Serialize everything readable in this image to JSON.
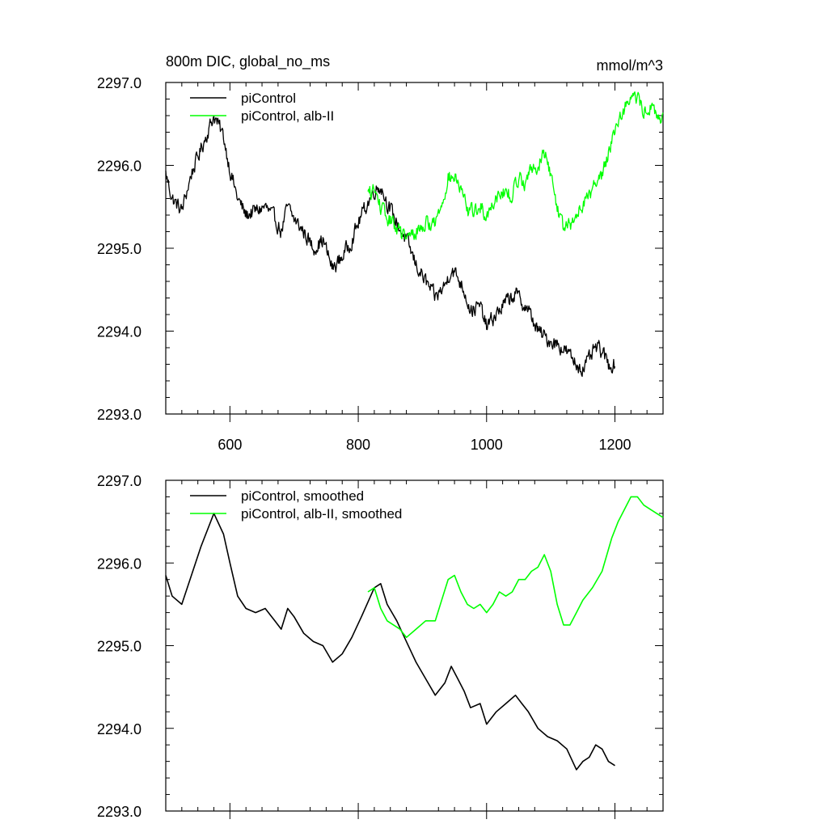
{
  "chart_data": [
    {
      "type": "line",
      "title": "800m DIC, global_no_ms",
      "units": "mmol/m^3",
      "xlim": [
        500,
        1275
      ],
      "ylim": [
        2293.0,
        2297.0
      ],
      "x_ticks": [
        600,
        800,
        1000,
        1200
      ],
      "x_tick_labels": [
        "600",
        "800",
        "1000",
        "1200"
      ],
      "y_ticks": [
        2293.0,
        2294.0,
        2295.0,
        2296.0,
        2297.0
      ],
      "y_tick_labels": [
        "2293.0",
        "2294.0",
        "2295.0",
        "2296.0",
        "2297.0"
      ],
      "grid": false,
      "legend_position": "top-left",
      "series": [
        {
          "name": "piControl",
          "color": "#000000",
          "noisy": true,
          "x": [
            500,
            510,
            525,
            540,
            555,
            575,
            590,
            600,
            612,
            625,
            640,
            655,
            670,
            680,
            690,
            700,
            715,
            730,
            745,
            760,
            775,
            790,
            805,
            825,
            835,
            845,
            860,
            875,
            890,
            905,
            920,
            935,
            945,
            955,
            965,
            975,
            990,
            1000,
            1015,
            1030,
            1045,
            1055,
            1065,
            1080,
            1095,
            1110,
            1125,
            1140,
            1150,
            1160,
            1170,
            1180,
            1190,
            1200
          ],
          "y": [
            2295.9,
            2295.6,
            2295.45,
            2295.9,
            2296.2,
            2296.6,
            2296.35,
            2295.95,
            2295.6,
            2295.4,
            2295.45,
            2295.5,
            2295.35,
            2295.2,
            2295.5,
            2295.35,
            2295.2,
            2295.0,
            2295.1,
            2294.75,
            2294.9,
            2295.1,
            2295.4,
            2295.7,
            2295.75,
            2295.55,
            2295.3,
            2295.1,
            2294.8,
            2294.6,
            2294.4,
            2294.55,
            2294.75,
            2294.65,
            2294.5,
            2294.25,
            2294.3,
            2294.05,
            2294.2,
            2294.35,
            2294.45,
            2294.35,
            2294.25,
            2294.0,
            2293.9,
            2293.85,
            2293.75,
            2293.6,
            2293.55,
            2293.65,
            2293.8,
            2293.75,
            2293.6,
            2293.6
          ]
        },
        {
          "name": "piControl, alb-II",
          "color": "#00ff00",
          "noisy": true,
          "x": [
            815,
            825,
            835,
            845,
            855,
            865,
            875,
            890,
            905,
            920,
            930,
            940,
            950,
            960,
            970,
            980,
            990,
            1000,
            1010,
            1020,
            1030,
            1040,
            1050,
            1060,
            1070,
            1080,
            1090,
            1100,
            1110,
            1120,
            1130,
            1140,
            1150,
            1165,
            1180,
            1195,
            1205,
            1215,
            1225,
            1235,
            1245,
            1255,
            1265,
            1275
          ],
          "y": [
            2295.65,
            2295.7,
            2295.5,
            2295.35,
            2295.3,
            2295.2,
            2295.1,
            2295.2,
            2295.3,
            2295.3,
            2295.55,
            2295.85,
            2295.85,
            2295.7,
            2295.45,
            2295.45,
            2295.5,
            2295.4,
            2295.55,
            2295.7,
            2295.65,
            2295.65,
            2295.85,
            2295.8,
            2295.95,
            2296.0,
            2296.15,
            2295.9,
            2295.5,
            2295.25,
            2295.25,
            2295.4,
            2295.55,
            2295.7,
            2295.9,
            2296.3,
            2296.55,
            2296.7,
            2296.85,
            2296.8,
            2296.65,
            2296.7,
            2296.6,
            2296.55
          ]
        }
      ]
    },
    {
      "type": "line",
      "title": "",
      "xlim": [
        500,
        1275
      ],
      "ylim": [
        2293.0,
        2297.0
      ],
      "x_ticks": [
        600,
        800,
        1000,
        1200
      ],
      "x_tick_labels": [],
      "y_ticks": [
        2293.0,
        2294.0,
        2295.0,
        2296.0,
        2297.0
      ],
      "y_tick_labels": [
        "2293.0",
        "2294.0",
        "2295.0",
        "2296.0",
        "2297.0"
      ],
      "grid": false,
      "legend_position": "top-left",
      "series": [
        {
          "name": "piControl, smoothed",
          "color": "#000000",
          "noisy": false,
          "x": [
            500,
            510,
            525,
            540,
            555,
            575,
            590,
            600,
            612,
            625,
            640,
            655,
            670,
            680,
            690,
            700,
            715,
            730,
            745,
            760,
            775,
            790,
            805,
            825,
            835,
            845,
            860,
            875,
            890,
            905,
            920,
            935,
            945,
            955,
            965,
            975,
            990,
            1000,
            1015,
            1030,
            1045,
            1055,
            1065,
            1080,
            1095,
            1110,
            1125,
            1140,
            1150,
            1160,
            1170,
            1180,
            1190,
            1200
          ],
          "y": [
            2295.85,
            2295.6,
            2295.5,
            2295.85,
            2296.2,
            2296.6,
            2296.35,
            2296.0,
            2295.6,
            2295.45,
            2295.4,
            2295.45,
            2295.3,
            2295.2,
            2295.45,
            2295.35,
            2295.15,
            2295.05,
            2295.0,
            2294.8,
            2294.9,
            2295.1,
            2295.35,
            2295.7,
            2295.75,
            2295.5,
            2295.3,
            2295.05,
            2294.8,
            2294.6,
            2294.4,
            2294.55,
            2294.75,
            2294.6,
            2294.45,
            2294.25,
            2294.3,
            2294.05,
            2294.2,
            2294.3,
            2294.4,
            2294.3,
            2294.2,
            2294.0,
            2293.9,
            2293.85,
            2293.75,
            2293.5,
            2293.6,
            2293.65,
            2293.8,
            2293.75,
            2293.6,
            2293.55
          ]
        },
        {
          "name": "piControl, alb-II, smoothed",
          "color": "#00ff00",
          "noisy": false,
          "x": [
            815,
            825,
            835,
            845,
            855,
            865,
            875,
            890,
            905,
            920,
            930,
            940,
            950,
            960,
            970,
            980,
            990,
            1000,
            1010,
            1020,
            1030,
            1040,
            1050,
            1060,
            1070,
            1080,
            1090,
            1100,
            1110,
            1120,
            1130,
            1140,
            1150,
            1165,
            1180,
            1195,
            1205,
            1215,
            1225,
            1235,
            1245,
            1255,
            1265,
            1275
          ],
          "y": [
            2295.65,
            2295.7,
            2295.45,
            2295.3,
            2295.25,
            2295.2,
            2295.1,
            2295.2,
            2295.3,
            2295.3,
            2295.55,
            2295.8,
            2295.85,
            2295.65,
            2295.5,
            2295.45,
            2295.5,
            2295.4,
            2295.5,
            2295.65,
            2295.6,
            2295.65,
            2295.8,
            2295.8,
            2295.9,
            2295.95,
            2296.1,
            2295.9,
            2295.5,
            2295.25,
            2295.25,
            2295.4,
            2295.55,
            2295.7,
            2295.9,
            2296.3,
            2296.5,
            2296.65,
            2296.8,
            2296.8,
            2296.7,
            2296.65,
            2296.6,
            2296.55
          ]
        }
      ]
    }
  ]
}
